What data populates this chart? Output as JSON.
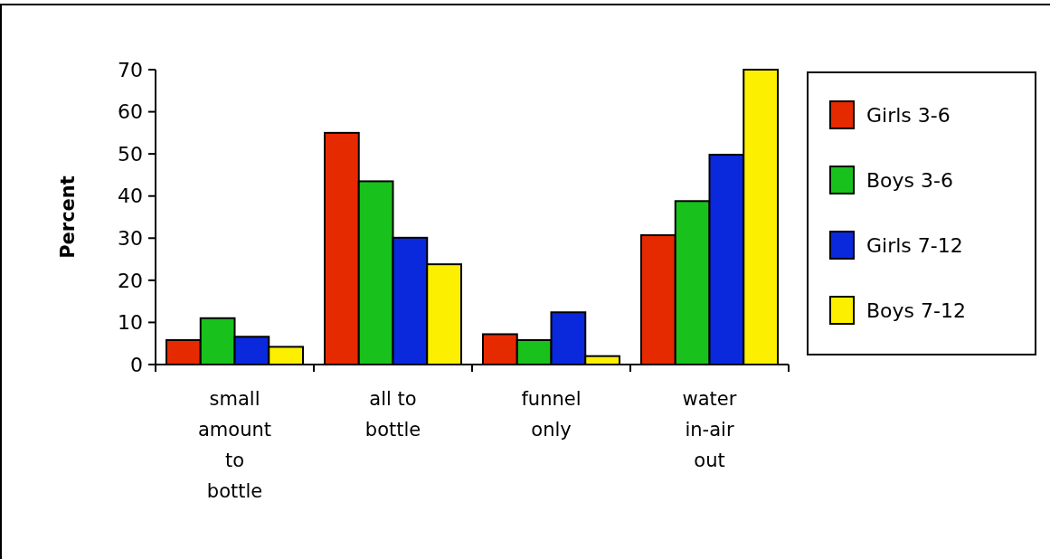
{
  "chart_data": {
    "type": "bar",
    "ylabel": "Percent",
    "categories": [
      "small\namount\nto\nbottle",
      "all to\nbottle",
      "funnel\nonly",
      "water\nin-air\nout"
    ],
    "series": [
      {
        "name": "Girls 3-6",
        "color": "#e62a00",
        "values": [
          5.8,
          55,
          7.2,
          30.7
        ]
      },
      {
        "name": "Boys 3-6",
        "color": "#19c11c",
        "values": [
          11,
          43.5,
          5.8,
          38.8
        ]
      },
      {
        "name": "Girls 7-12",
        "color": "#0a28dc",
        "values": [
          6.6,
          30.1,
          12.4,
          49.8
        ]
      },
      {
        "name": "Boys 7-12",
        "color": "#fcef00",
        "values": [
          4.2,
          23.8,
          2,
          70
        ]
      }
    ],
    "ylim": [
      0,
      70
    ],
    "yticks": [
      0,
      10,
      20,
      30,
      40,
      50,
      60,
      70
    ],
    "grid": false,
    "legend": "right"
  }
}
